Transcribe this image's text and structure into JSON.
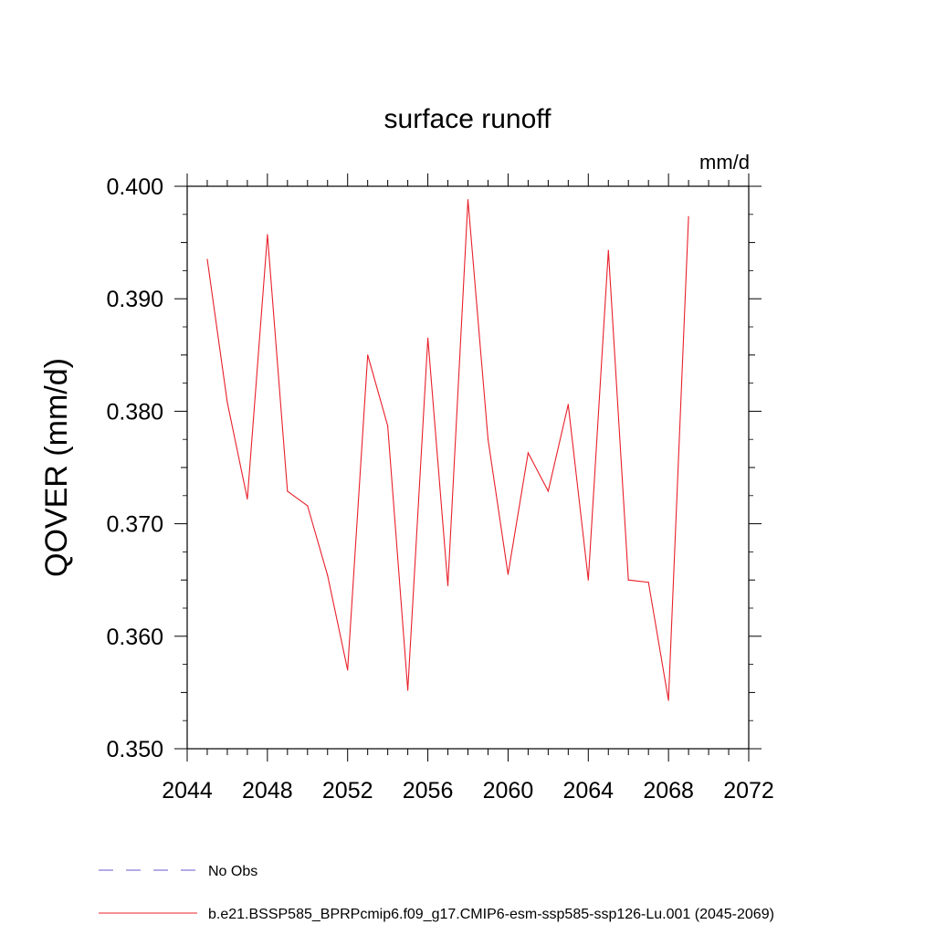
{
  "chart_data": {
    "type": "line",
    "title": "surface runoff",
    "units": "mm/d",
    "ylabel": "QOVER  (mm/d)",
    "xlabel": "",
    "xlim": [
      2044,
      2072
    ],
    "ylim": [
      0.35,
      0.4
    ],
    "x_ticks": [
      "2044",
      "2048",
      "2052",
      "2056",
      "2060",
      "2064",
      "2068",
      "2072"
    ],
    "y_ticks": [
      "0.350",
      "0.360",
      "0.370",
      "0.380",
      "0.390",
      "0.400"
    ],
    "grid": false,
    "legend_position": "bottom-left",
    "legend": [
      {
        "label": "No Obs",
        "color": "#6a5acd",
        "style": "dashed"
      },
      {
        "label": "b.e21.BSSP585_BPRPcmip6.f09_g17.CMIP6-esm-ssp585-ssp126-Lu.001 (2045-2069)",
        "color": "#e8202a",
        "style": "solid"
      }
    ],
    "series": [
      {
        "name": "b.e21.BSSP585_BPRPcmip6.f09_g17.CMIP6-esm-ssp585-ssp126-Lu.001 (2045-2069)",
        "color": "#e8202a",
        "x": [
          2045,
          2046,
          2047,
          2048,
          2049,
          2050,
          2051,
          2052,
          2053,
          2054,
          2055,
          2056,
          2057,
          2058,
          2059,
          2060,
          2061,
          2062,
          2063,
          2064,
          2065,
          2066,
          2067,
          2068,
          2069
        ],
        "y": [
          0.3935,
          0.3808,
          0.3722,
          0.3957,
          0.3729,
          0.3716,
          0.3654,
          0.357,
          0.385,
          0.3787,
          0.3552,
          0.3865,
          0.3645,
          0.3988,
          0.3775,
          0.3655,
          0.3763,
          0.3729,
          0.3806,
          0.365,
          0.3943,
          0.365,
          0.3648,
          0.3543,
          0.3973
        ]
      }
    ]
  }
}
